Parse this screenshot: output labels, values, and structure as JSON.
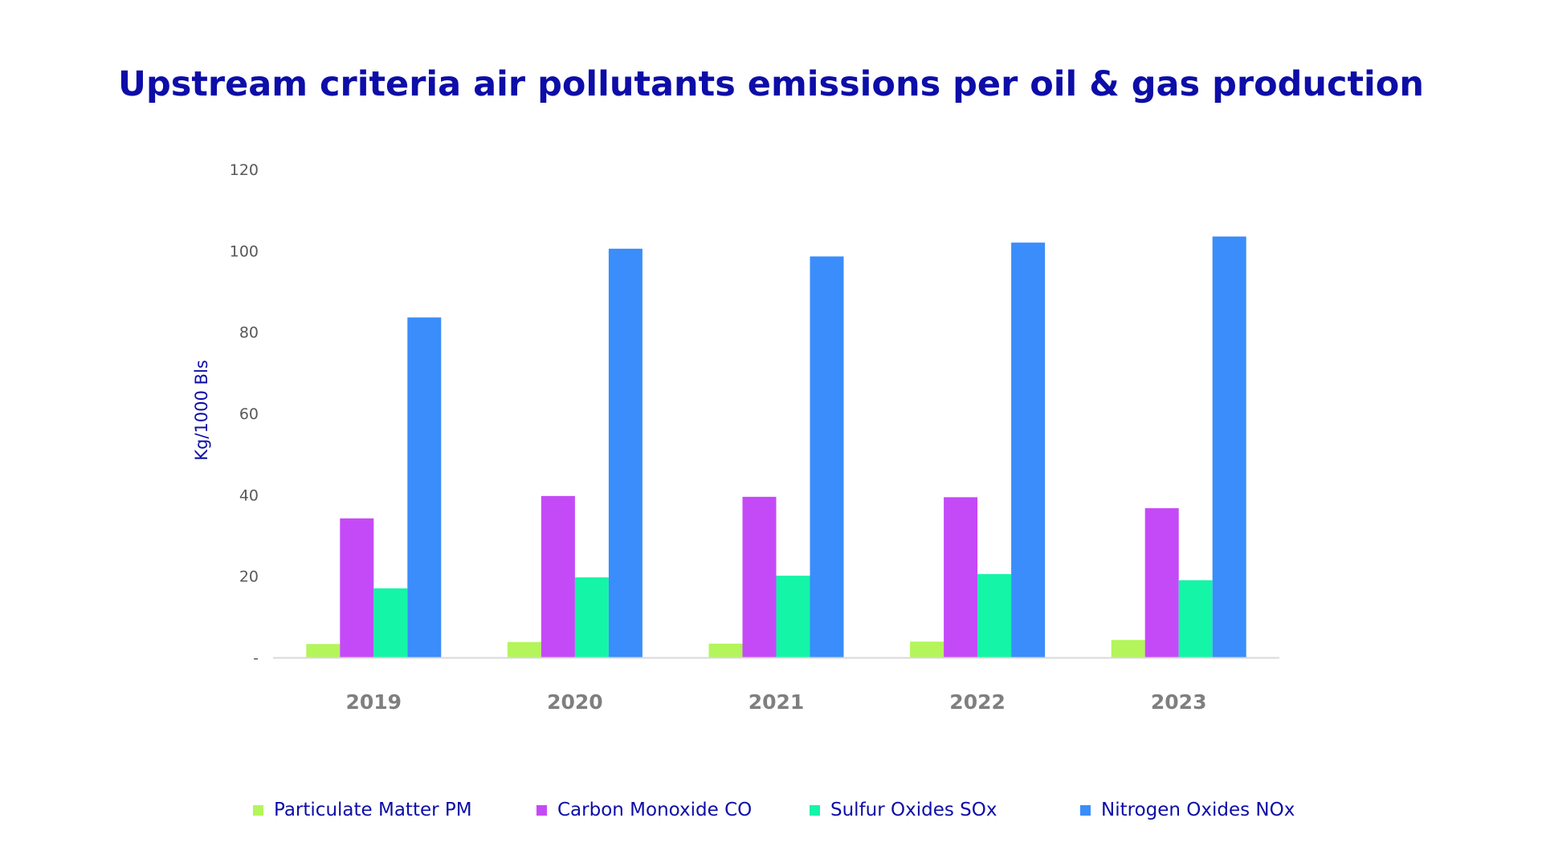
{
  "chart_data": {
    "type": "bar",
    "title": "Upstream criteria air pollutants emissions per oil & gas production",
    "ylabel": "Kg/1000 Bls",
    "xlabel": "",
    "ylim": [
      0,
      120
    ],
    "yticks": [
      {
        "value": 0,
        "label": "-"
      },
      {
        "value": 20,
        "label": "20"
      },
      {
        "value": 40,
        "label": "40"
      },
      {
        "value": 60,
        "label": "60"
      },
      {
        "value": 80,
        "label": "80"
      },
      {
        "value": 100,
        "label": "100"
      },
      {
        "value": 120,
        "label": "120"
      }
    ],
    "categories": [
      "2019",
      "2020",
      "2021",
      "2022",
      "2023"
    ],
    "series": [
      {
        "name": "Particulate Matter PM",
        "color": "#b3f55a",
        "values": [
          3.3,
          3.8,
          3.4,
          3.9,
          4.3
        ]
      },
      {
        "name": "Carbon Monoxide CO",
        "color": "#c54af7",
        "values": [
          34.2,
          39.7,
          39.5,
          39.4,
          36.7
        ]
      },
      {
        "name": "Sulfur Oxides SOx",
        "color": "#14f5a8",
        "values": [
          17.0,
          19.7,
          20.1,
          20.5,
          19.0
        ]
      },
      {
        "name": "Nitrogen Oxides NOx",
        "color": "#3a8dfb",
        "values": [
          83.6,
          100.5,
          98.6,
          102.0,
          103.5
        ]
      }
    ],
    "grid": false,
    "legend_position": "bottom",
    "axis_color": "#d9d9d9"
  }
}
